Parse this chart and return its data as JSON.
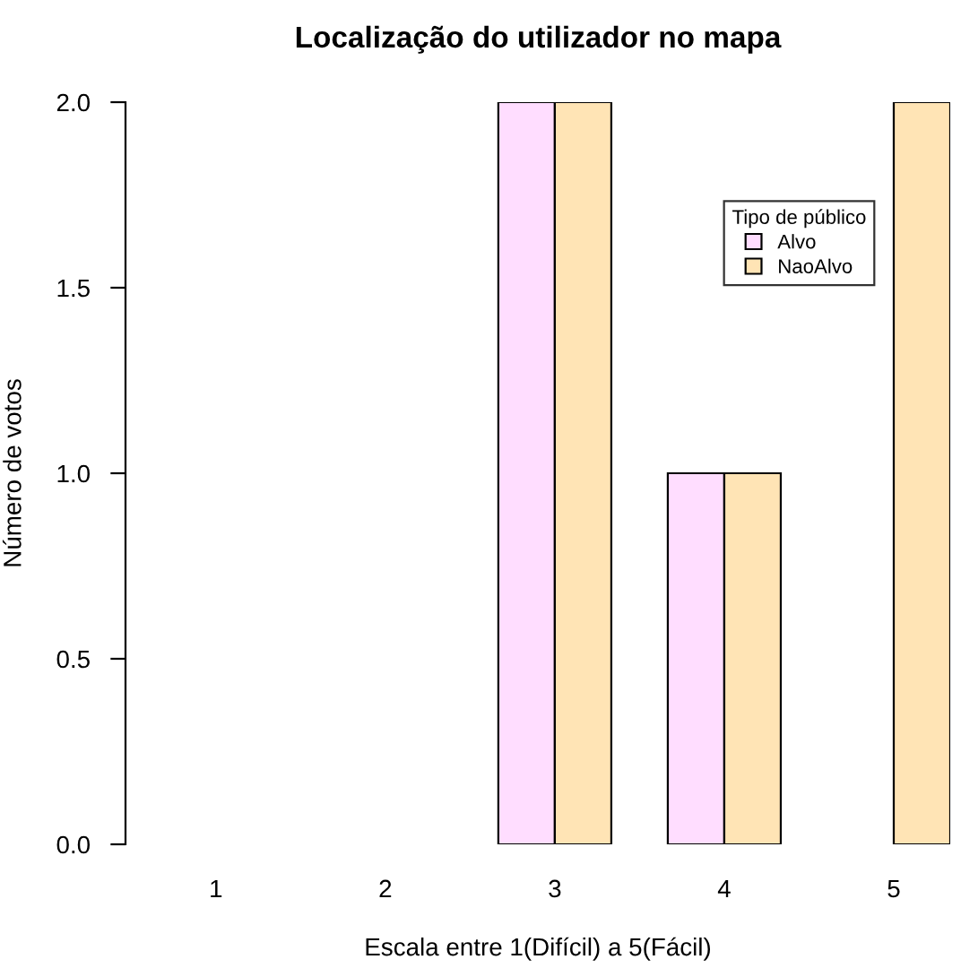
{
  "chart_data": {
    "type": "bar",
    "title": "Localização do utilizador no mapa",
    "xlabel": "Escala entre 1(Difícil) a 5(Fácil)",
    "ylabel": "Número de votos",
    "legend_title": "Tipo de público",
    "categories": [
      "1",
      "2",
      "3",
      "4",
      "5"
    ],
    "series": [
      {
        "name": "Alvo",
        "color": "#ffddff",
        "values": [
          0,
          0,
          2,
          1,
          0
        ]
      },
      {
        "name": "NaoAlvo",
        "color": "#ffe4b5",
        "values": [
          0,
          0,
          2,
          1,
          2
        ]
      }
    ],
    "ylim": [
      0,
      2
    ],
    "yticks": [
      {
        "value": 0,
        "label": "0.0"
      },
      0.5,
      {
        "value": 1,
        "label": "1.0"
      },
      1.5,
      {
        "value": 2,
        "label": "2.0"
      }
    ],
    "grid": false,
    "legend": "top right"
  }
}
